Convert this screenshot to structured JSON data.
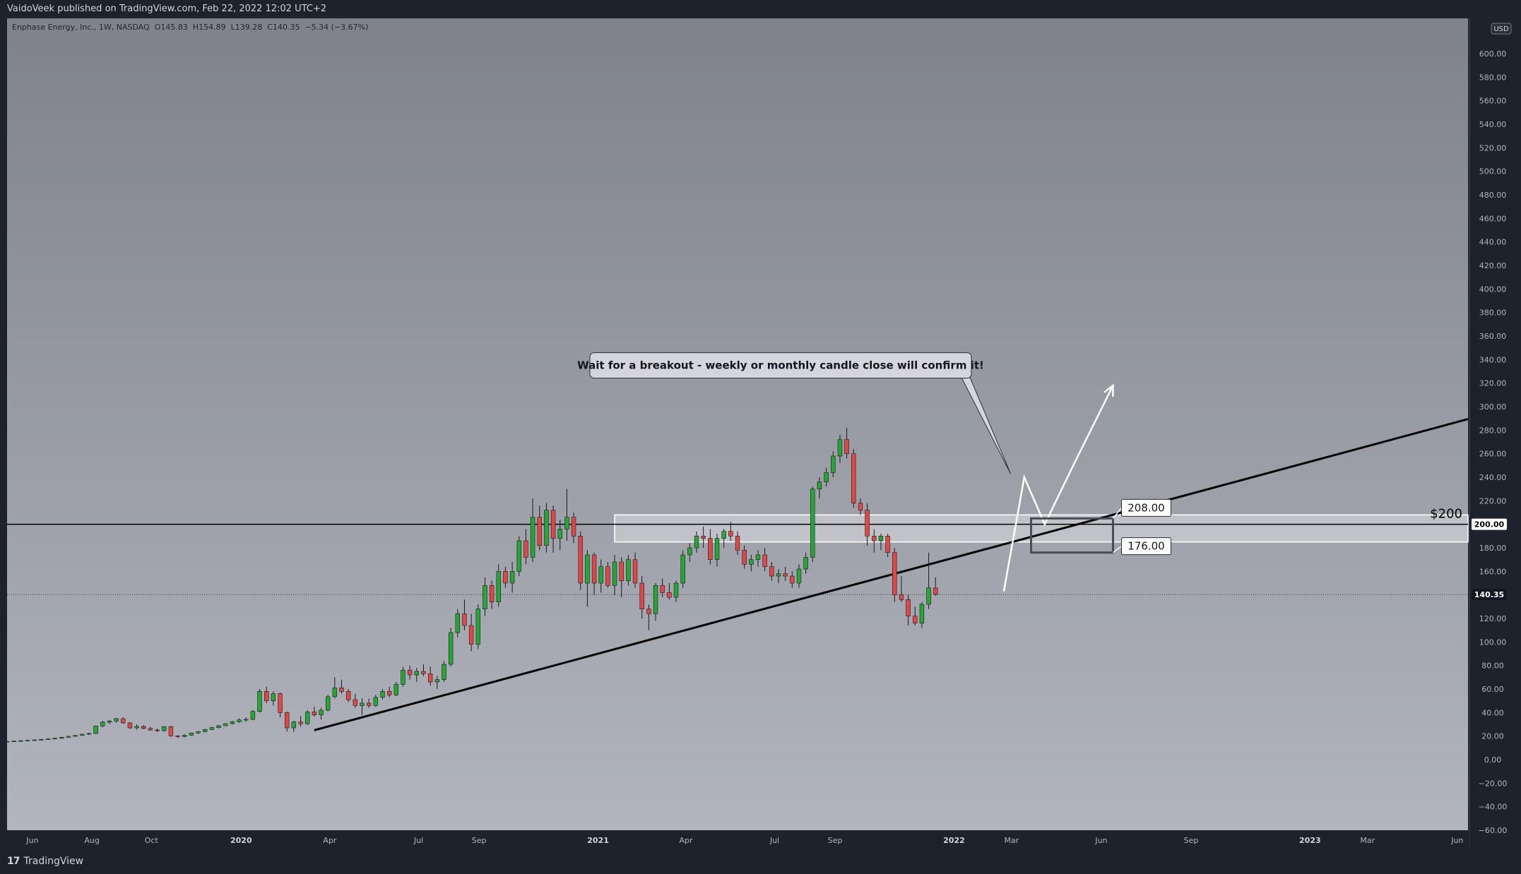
{
  "header": {
    "published": "VaidoVeek published on TradingView.com, Feb 22, 2022 12:02 UTC+2"
  },
  "footer": {
    "logo_glyph": "17",
    "brand": "TradingView"
  },
  "legend": {
    "symbol": "Enphase Energy, Inc., 1W, NASDAQ",
    "open": "O145.83",
    "high": "H154.89",
    "low": "L139.28",
    "close": "C140.35",
    "change": "−5.34 (−3.67%)"
  },
  "currency_badge": "USD",
  "colors": {
    "up": "#26a636",
    "down": "#e04848",
    "background_top": "#7f828c",
    "background_bottom": "#b2b5bd",
    "frame": "#1e222d"
  },
  "chart_data": {
    "type": "candlestick",
    "timeframe": "1W",
    "ylim": [
      -60,
      630
    ],
    "y_ticks": [
      600,
      580,
      560,
      540,
      520,
      500,
      480,
      460,
      440,
      420,
      400,
      380,
      360,
      340,
      320,
      300,
      280,
      260,
      240,
      220,
      200,
      180,
      160,
      140,
      120,
      100,
      80,
      60,
      40,
      20,
      0,
      -20,
      -40,
      -60
    ],
    "y_tick_labels": [
      "600.00",
      "580.00",
      "560.00",
      "540.00",
      "520.00",
      "500.00",
      "480.00",
      "460.00",
      "440.00",
      "420.00",
      "400.00",
      "380.00",
      "360.00",
      "340.00",
      "320.00",
      "300.00",
      "280.00",
      "260.00",
      "240.00",
      "220.00",
      "200.00",
      "180.00",
      "160.00",
      "140.00",
      "120.00",
      "100.00",
      "80.00",
      "60.00",
      "40.00",
      "20.00",
      "0.00",
      "−20.00",
      "−40.00",
      "−60.00"
    ],
    "x_range": [
      "2019-05-06",
      "2023-06-12"
    ],
    "x_ticks": [
      {
        "date": "2019-06-01",
        "label": "Jun",
        "bold": false
      },
      {
        "date": "2019-08-01",
        "label": "Aug",
        "bold": false
      },
      {
        "date": "2019-10-01",
        "label": "Oct",
        "bold": false
      },
      {
        "date": "2020-01-01",
        "label": "2020",
        "bold": true
      },
      {
        "date": "2020-04-01",
        "label": "Apr",
        "bold": false
      },
      {
        "date": "2020-07-01",
        "label": "Jul",
        "bold": false
      },
      {
        "date": "2020-09-01",
        "label": "Sep",
        "bold": false
      },
      {
        "date": "2021-01-01",
        "label": "2021",
        "bold": true
      },
      {
        "date": "2021-04-01",
        "label": "Apr",
        "bold": false
      },
      {
        "date": "2021-07-01",
        "label": "Jul",
        "bold": false
      },
      {
        "date": "2021-09-01",
        "label": "Sep",
        "bold": false
      },
      {
        "date": "2022-01-01",
        "label": "2022",
        "bold": true
      },
      {
        "date": "2022-03-01",
        "label": "Mar",
        "bold": false
      },
      {
        "date": "2022-06-01",
        "label": "Jun",
        "bold": false
      },
      {
        "date": "2022-09-01",
        "label": "Sep",
        "bold": false
      },
      {
        "date": "2023-01-01",
        "label": "2023",
        "bold": true
      },
      {
        "date": "2023-03-01",
        "label": "Mar",
        "bold": false
      },
      {
        "date": "2023-06-01",
        "label": "Jun",
        "bold": false
      }
    ],
    "start_week": "2019-05-06",
    "candles": [
      [
        15,
        16,
        14.6,
        15.5
      ],
      [
        15.5,
        16.2,
        15,
        15.8
      ],
      [
        15.8,
        16.6,
        15.4,
        16.1
      ],
      [
        16.1,
        16.9,
        15.7,
        16.4
      ],
      [
        16.4,
        17.2,
        16,
        16.8
      ],
      [
        16.8,
        17.6,
        16.4,
        17.2
      ],
      [
        17.2,
        18,
        16.8,
        17.6
      ],
      [
        17.6,
        18.6,
        17.2,
        18.2
      ],
      [
        18.2,
        19.4,
        17.8,
        19
      ],
      [
        19,
        20.2,
        18.6,
        19.8
      ],
      [
        19.8,
        21,
        19.4,
        20.6
      ],
      [
        20.6,
        22,
        20.2,
        21.6
      ],
      [
        21.6,
        22.8,
        21,
        22.2
      ],
      [
        22.2,
        29,
        21.8,
        28.6
      ],
      [
        28.6,
        33,
        27.5,
        31.8
      ],
      [
        31.8,
        34,
        30.2,
        32.8
      ],
      [
        32.8,
        35.5,
        31.5,
        34.8
      ],
      [
        34.8,
        36,
        30.5,
        31.2
      ],
      [
        31.2,
        32,
        26,
        27
      ],
      [
        27,
        30,
        25.5,
        28.2
      ],
      [
        28.2,
        29.5,
        25.8,
        26.5
      ],
      [
        26.5,
        28,
        24.5,
        25.2
      ],
      [
        25.2,
        26.5,
        23.5,
        24.6
      ],
      [
        24.6,
        28.5,
        23.8,
        28
      ],
      [
        28,
        28.8,
        19.5,
        20.2
      ],
      [
        20.2,
        21,
        18.5,
        19.6
      ],
      [
        19.6,
        21.5,
        19,
        20.8
      ],
      [
        20.8,
        23,
        20.2,
        22.6
      ],
      [
        22.6,
        24.5,
        22,
        23.8
      ],
      [
        23.8,
        26.2,
        23.2,
        25.6
      ],
      [
        25.6,
        27.8,
        25,
        27.2
      ],
      [
        27.2,
        29.5,
        26.5,
        28.8
      ],
      [
        28.8,
        31,
        28.2,
        30.6
      ],
      [
        30.6,
        33,
        29.8,
        32.2
      ],
      [
        32.2,
        35,
        31.4,
        33.8
      ],
      [
        33.8,
        36,
        32.2,
        34.2
      ],
      [
        34.2,
        42,
        33.5,
        41
      ],
      [
        41,
        60,
        40,
        58
      ],
      [
        58,
        62,
        48,
        50
      ],
      [
        50,
        58,
        46,
        56
      ],
      [
        56,
        57,
        36,
        40
      ],
      [
        40,
        41,
        24,
        27
      ],
      [
        27,
        33,
        23.5,
        32
      ],
      [
        32,
        37,
        28,
        30.5
      ],
      [
        30.5,
        42,
        29.5,
        40.5
      ],
      [
        40.5,
        45,
        36.5,
        38
      ],
      [
        38,
        44,
        34,
        42
      ],
      [
        42,
        55,
        41,
        53.5
      ],
      [
        53.5,
        70,
        52,
        61
      ],
      [
        61,
        68,
        56,
        58
      ],
      [
        58,
        60,
        49,
        51
      ],
      [
        51,
        56,
        44,
        46
      ],
      [
        46,
        52,
        38,
        48
      ],
      [
        48,
        52,
        44,
        46
      ],
      [
        46,
        55,
        45,
        53
      ],
      [
        53,
        60,
        51,
        58
      ],
      [
        58,
        62,
        53,
        55
      ],
      [
        55,
        66,
        54,
        64
      ],
      [
        64,
        79,
        62,
        76
      ],
      [
        76,
        80,
        68,
        72
      ],
      [
        72,
        78,
        66,
        75
      ],
      [
        75,
        81,
        71,
        73
      ],
      [
        73,
        79,
        63,
        66
      ],
      [
        66,
        71,
        60,
        68
      ],
      [
        68,
        84,
        66,
        81
      ],
      [
        81,
        112,
        79,
        108
      ],
      [
        108,
        128,
        104,
        124
      ],
      [
        124,
        136,
        110,
        114
      ],
      [
        114,
        124,
        92,
        98
      ],
      [
        98,
        132,
        94,
        128
      ],
      [
        128,
        155,
        122,
        148
      ],
      [
        148,
        152,
        128,
        134
      ],
      [
        134,
        166,
        130,
        160
      ],
      [
        160,
        164,
        146,
        150
      ],
      [
        150,
        168,
        142,
        160
      ],
      [
        160,
        190,
        156,
        186
      ],
      [
        186,
        196,
        166,
        172
      ],
      [
        172,
        222,
        168,
        206
      ],
      [
        206,
        216,
        178,
        182
      ],
      [
        182,
        218,
        176,
        212
      ],
      [
        212,
        216,
        176,
        188
      ],
      [
        188,
        204,
        178,
        196
      ],
      [
        196,
        230,
        186,
        206
      ],
      [
        206,
        210,
        184,
        190
      ],
      [
        190,
        194,
        144,
        150
      ],
      [
        150,
        178,
        130,
        174
      ],
      [
        174,
        176,
        140,
        150
      ],
      [
        150,
        170,
        142,
        164
      ],
      [
        164,
        168,
        146,
        148
      ],
      [
        148,
        174,
        140,
        168
      ],
      [
        168,
        172,
        138,
        152
      ],
      [
        152,
        174,
        148,
        170
      ],
      [
        170,
        176,
        146,
        150
      ],
      [
        150,
        156,
        120,
        128
      ],
      [
        128,
        132,
        110,
        124
      ],
      [
        124,
        150,
        118,
        148
      ],
      [
        148,
        154,
        138,
        142
      ],
      [
        142,
        150,
        136,
        138
      ],
      [
        138,
        152,
        134,
        150
      ],
      [
        150,
        178,
        146,
        174
      ],
      [
        174,
        184,
        168,
        180
      ],
      [
        180,
        194,
        176,
        190
      ],
      [
        190,
        198,
        180,
        188
      ],
      [
        188,
        196,
        166,
        170
      ],
      [
        170,
        192,
        164,
        188
      ],
      [
        188,
        196,
        180,
        194
      ],
      [
        194,
        202,
        186,
        190
      ],
      [
        190,
        194,
        174,
        178
      ],
      [
        178,
        182,
        162,
        166
      ],
      [
        166,
        174,
        160,
        170
      ],
      [
        170,
        178,
        164,
        174
      ],
      [
        174,
        180,
        160,
        164
      ],
      [
        164,
        168,
        152,
        156
      ],
      [
        156,
        162,
        150,
        158
      ],
      [
        158,
        164,
        152,
        156
      ],
      [
        156,
        160,
        146,
        150
      ],
      [
        150,
        166,
        146,
        162
      ],
      [
        162,
        176,
        158,
        172
      ],
      [
        172,
        232,
        168,
        230
      ],
      [
        230,
        240,
        222,
        236
      ],
      [
        236,
        248,
        232,
        244
      ],
      [
        244,
        262,
        240,
        258
      ],
      [
        258,
        276,
        252,
        272
      ],
      [
        272,
        282,
        256,
        260
      ],
      [
        260,
        264,
        214,
        218
      ],
      [
        218,
        222,
        208,
        212
      ],
      [
        212,
        218,
        182,
        190
      ],
      [
        190,
        196,
        176,
        186
      ],
      [
        186,
        192,
        178,
        190
      ],
      [
        190,
        192,
        172,
        176
      ],
      [
        176,
        180,
        134,
        140
      ],
      [
        140,
        156,
        134,
        136
      ],
      [
        136,
        140,
        114,
        122
      ],
      [
        122,
        130,
        114,
        116
      ],
      [
        116,
        134,
        112,
        132
      ],
      [
        132,
        176,
        128,
        146
      ],
      [
        145.83,
        154.89,
        139.28,
        140.35
      ]
    ],
    "annotations": {
      "callout_text": "Wait for a breakout - weekly or monthly candle close will confirm it!",
      "resistance_label": "$200",
      "resistance_value": 200,
      "resistance_axis_label": "200.00",
      "last_price_value": 140.35,
      "last_price_label": "140.35",
      "zone_top": 208,
      "zone_top_label": "208.00",
      "zone_bottom": 176,
      "zone_bottom_label": "176.00",
      "box_range": [
        176,
        205
      ],
      "box_dates": [
        "2022-03-21",
        "2022-06-13"
      ],
      "trendline": {
        "start": [
          "2020-03-16",
          25
        ],
        "through": [
          "2021-11-01",
          158
        ]
      },
      "projection": [
        [
          "2022-02-21",
          143
        ],
        [
          "2022-03-14",
          240
        ],
        [
          "2022-04-04",
          200
        ],
        [
          "2022-05-02",
          248
        ],
        [
          "2022-06-13",
          318
        ]
      ],
      "callout_target": [
        "2022-02-28",
        243
      ]
    }
  }
}
